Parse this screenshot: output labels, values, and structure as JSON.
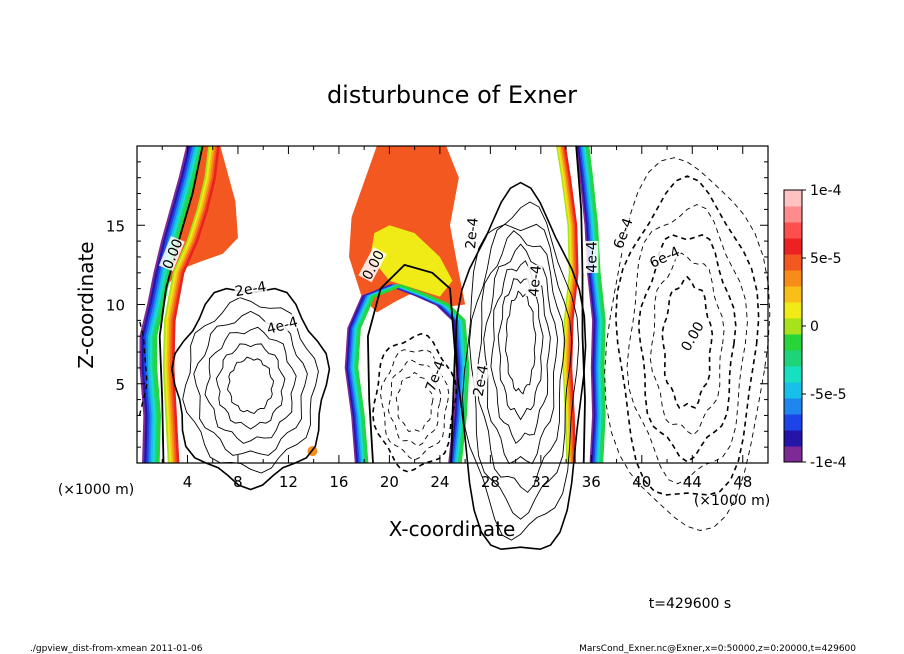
{
  "chart_data": {
    "type": "heatmap",
    "title": "disturbunce of Exner",
    "xlabel": "X-coordinate",
    "ylabel": "Z-coordinate",
    "x_unit_label": "(×1000 m)",
    "x_unit_label_right": "(×1000 m)",
    "xlim": [
      0,
      50
    ],
    "ylim": [
      0,
      20
    ],
    "x_ticks": [
      "4",
      "8",
      "12",
      "16",
      "20",
      "24",
      "28",
      "32",
      "36",
      "40",
      "44",
      "48"
    ],
    "y_ticks": [
      "5",
      "10",
      "15"
    ],
    "colorbar": {
      "range": [
        -0.0001,
        0.0001
      ],
      "tick_labels": [
        "1e-4",
        "5e-5",
        "0",
        "-5e-5",
        "-1e-4"
      ],
      "colors": [
        "#7d2a96",
        "#2415a8",
        "#1c44e8",
        "#1f86f0",
        "#16c0e8",
        "#17e0c0",
        "#1dd47a",
        "#27d53a",
        "#a8e21a",
        "#f0ea16",
        "#f8c016",
        "#f78c18",
        "#f35820",
        "#ec2222",
        "#ff4e4e",
        "#ff8c8c",
        "#ffc2c2"
      ]
    },
    "contour_labels": [
      {
        "text": "0.00"
      },
      {
        "text": "2e-4"
      },
      {
        "text": "4e-4"
      },
      {
        "text": "0.00"
      },
      {
        "text": "2e-4"
      },
      {
        "text": "4e-4"
      },
      {
        "text": "6e-4"
      },
      {
        "text": "0.00"
      },
      {
        "text": "2e-4"
      },
      {
        "text": "4e-4"
      },
      {
        "text": "6e-4"
      },
      {
        "text": "7e-4"
      }
    ],
    "grid": false
  },
  "time_label": "t=429600 s",
  "footer_left": "./gpview_dist-from-xmean  2011-01-06",
  "footer_right": "MarsCond_Exner.nc@Exner,x=0:50000,z=0:20000,t=429600"
}
